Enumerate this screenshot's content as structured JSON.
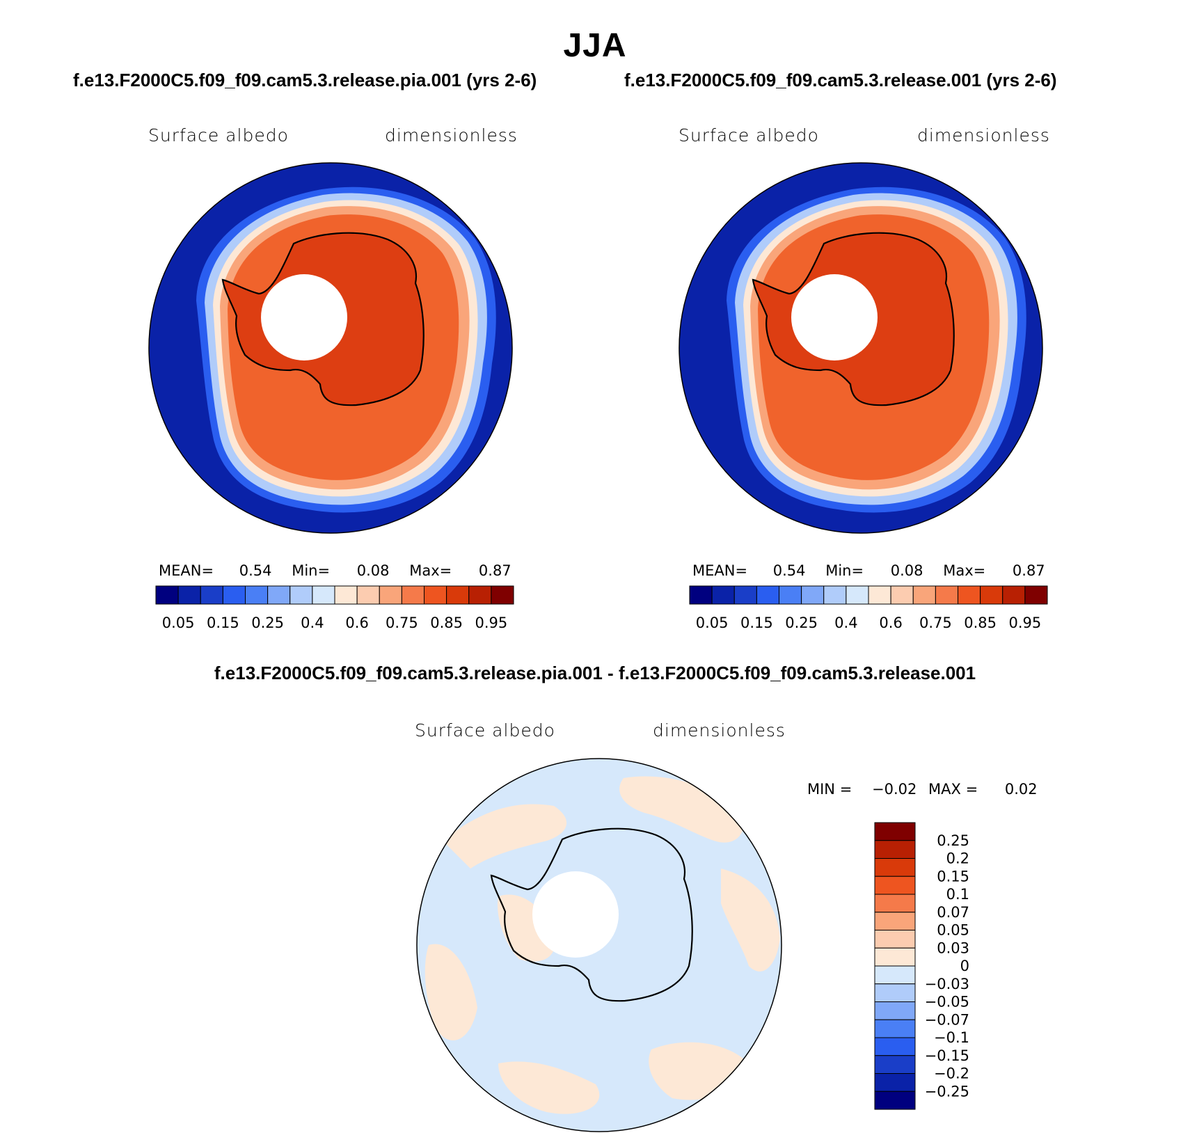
{
  "title": "JJA",
  "panels": [
    {
      "case": "f.e13.F2000C5.f09_f09.cam5.3.release.pia.001 (yrs 2-6)",
      "variable": "Surface albedo",
      "units": "dimensionless",
      "stats": {
        "mean_label": "MEAN=",
        "mean": "0.54",
        "min_label": "Min=",
        "min": "0.08",
        "max_label": "Max=",
        "max": "0.87"
      }
    },
    {
      "case": "f.e13.F2000C5.f09_f09.cam5.3.release.001 (yrs 2-6)",
      "variable": "Surface albedo",
      "units": "dimensionless",
      "stats": {
        "mean_label": "MEAN=",
        "mean": "0.54",
        "min_label": "Min=",
        "min": "0.08",
        "max_label": "Max=",
        "max": "0.87"
      }
    }
  ],
  "diff_panel": {
    "case": "f.e13.F2000C5.f09_f09.cam5.3.release.pia.001 - f.e13.F2000C5.f09_f09.cam5.3.release.001",
    "variable": "Surface albedo",
    "units": "dimensionless",
    "stats": {
      "min_label": "MIN =",
      "min": "−0.02",
      "max_label": "MAX =",
      "max": "0.02"
    }
  },
  "colorbar_abs": {
    "colors": [
      "#00007f",
      "#0a22a8",
      "#1a3ec8",
      "#2a5ef0",
      "#4a7ff5",
      "#80a8f8",
      "#b0ccfa",
      "#d6e8fb",
      "#fde8d6",
      "#fcccb0",
      "#f9a57a",
      "#f57a4a",
      "#ee5520",
      "#d93a0a",
      "#b82003",
      "#7f0000"
    ],
    "tick_labels": [
      "0.05",
      "0.15",
      "0.25",
      "0.4",
      "0.6",
      "0.75",
      "0.85",
      "0.95"
    ]
  },
  "colorbar_diff": {
    "colors": [
      "#7f0000",
      "#b82003",
      "#d93a0a",
      "#ee5520",
      "#f57a4a",
      "#f9a57a",
      "#fcccb0",
      "#fde8d6",
      "#d6e8fb",
      "#b0ccfa",
      "#80a8f8",
      "#4a7ff5",
      "#2a5ef0",
      "#1a3ec8",
      "#0a22a8",
      "#00007f"
    ],
    "tick_labels": [
      "0.25",
      "0.2",
      "0.15",
      "0.1",
      "0.07",
      "0.05",
      "0.03",
      "0",
      "−0.03",
      "−0.05",
      "−0.07",
      "−0.1",
      "−0.15",
      "−0.2",
      "−0.25"
    ]
  },
  "legend_colors": {
    "ocean_deep": "#0a22a8",
    "ocean_edge": "#2a5ef0",
    "ice_outer": "#f9a57a",
    "ice_main": "#f0632c",
    "continent": "#dd3e12",
    "diff_neg": "#d6e8fb",
    "diff_pos": "#fde8d6"
  }
}
